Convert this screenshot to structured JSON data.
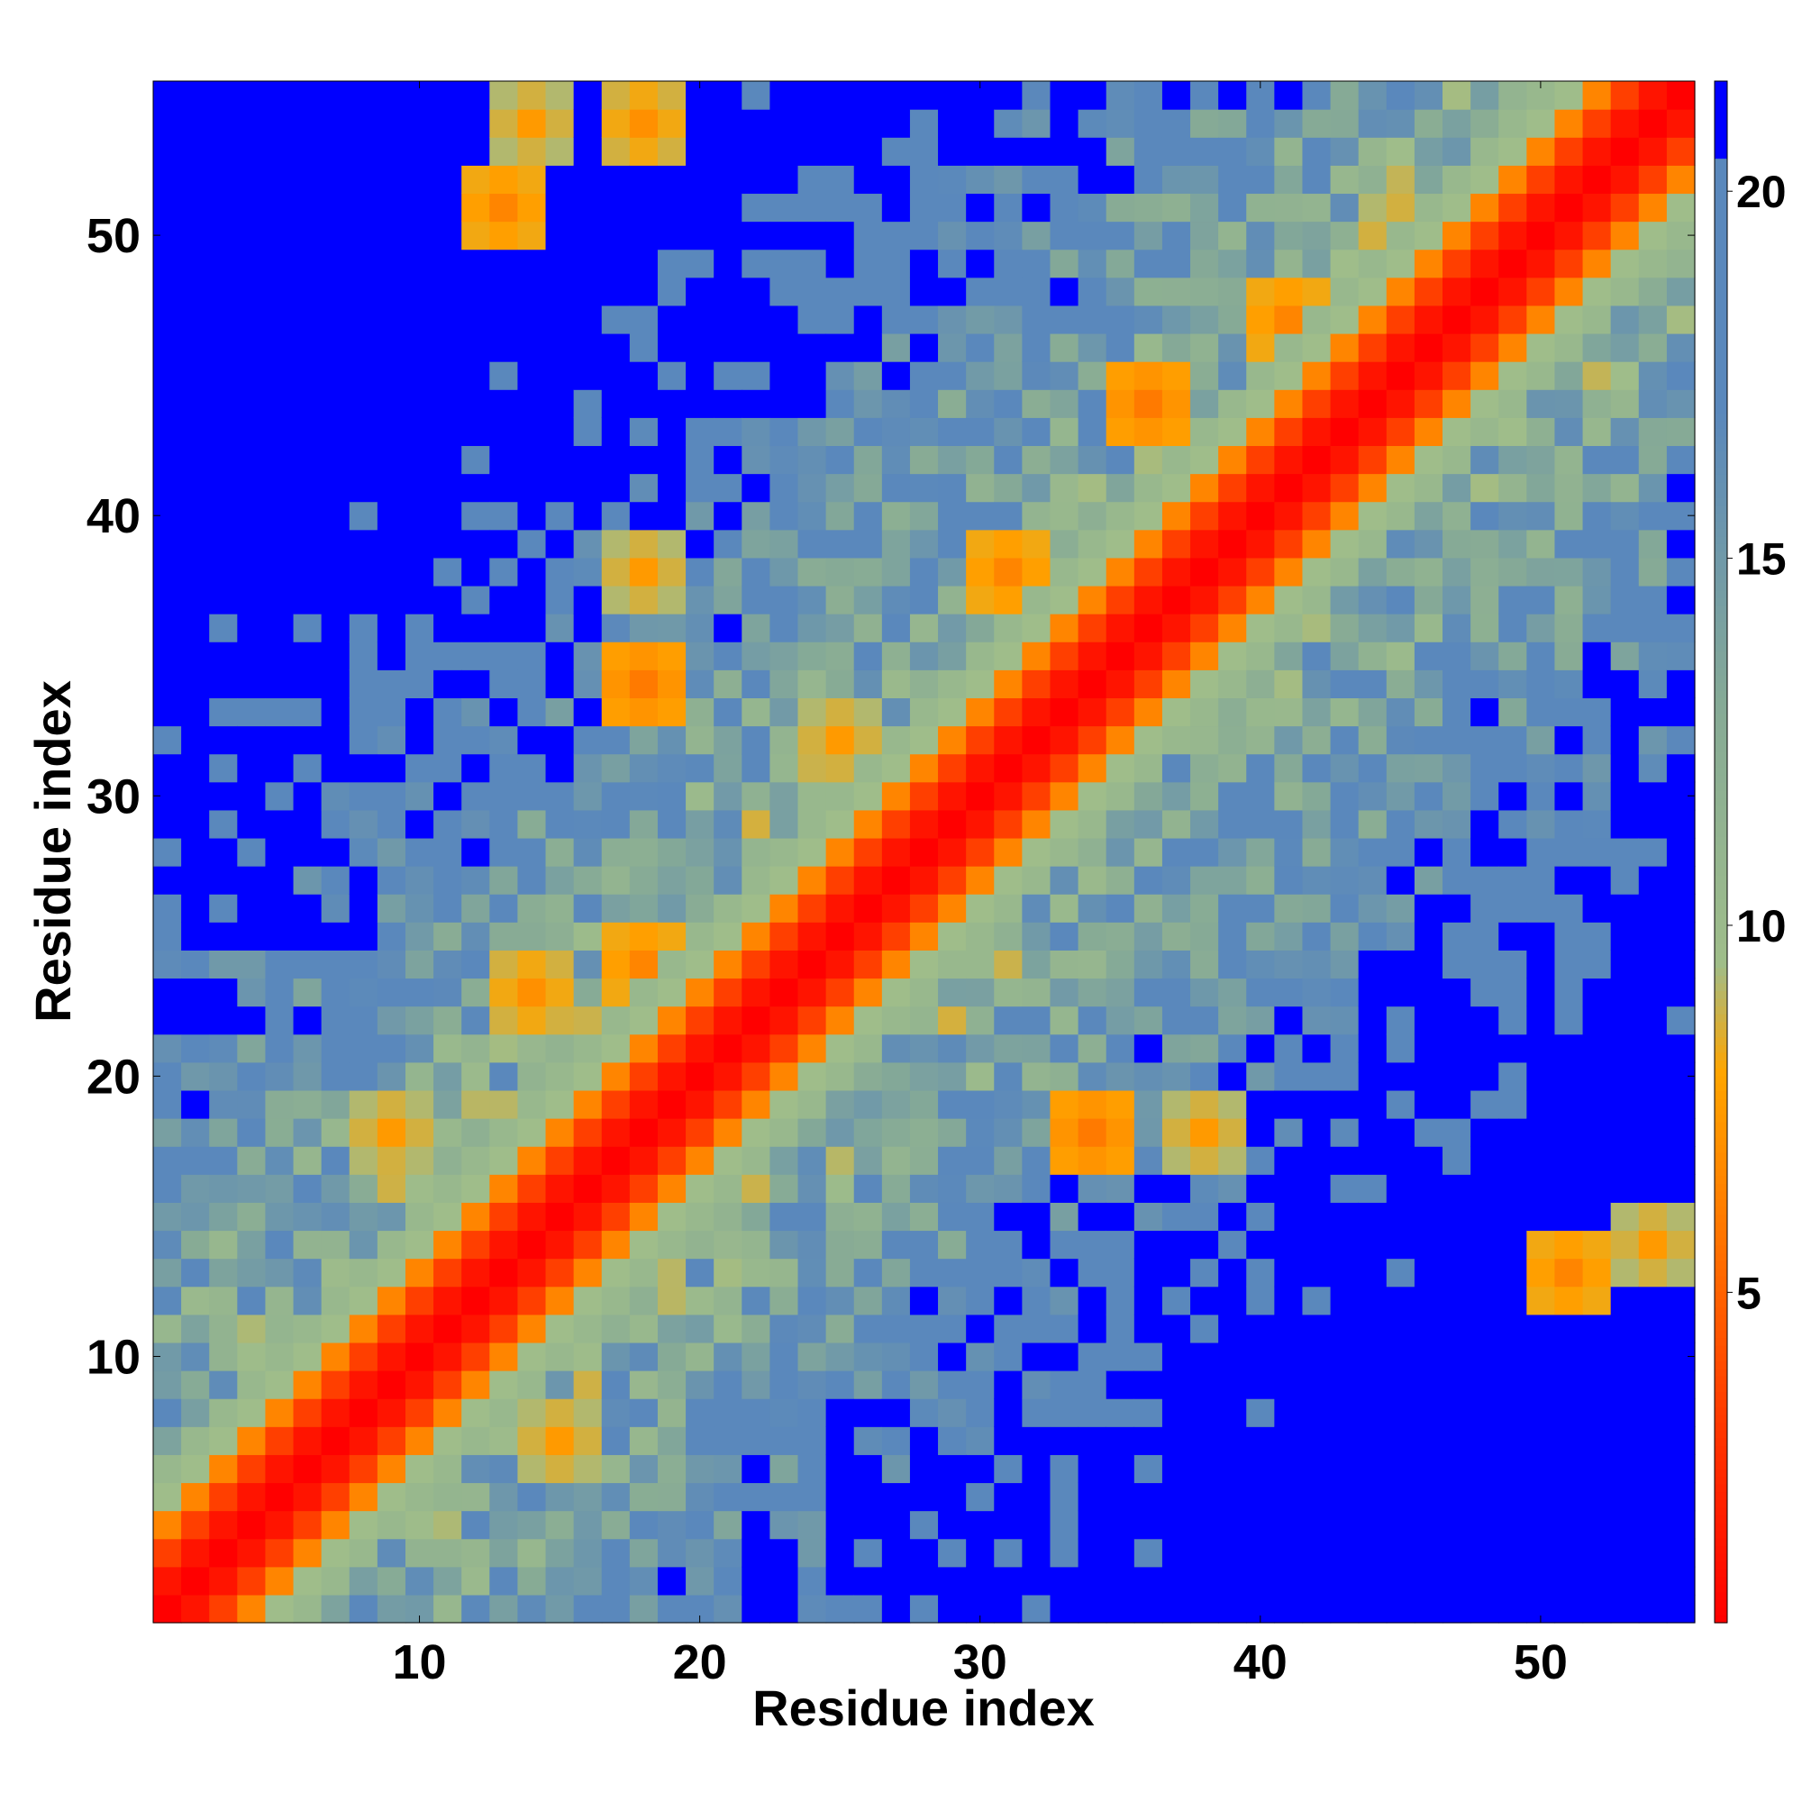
{
  "chart_data": {
    "type": "heatmap",
    "title": "",
    "xlabel": "Residue index",
    "ylabel": "Residue index",
    "n_residues": 55,
    "xlim": [
      0.5,
      55.5
    ],
    "ylim": [
      0.5,
      55.5
    ],
    "x_ticks": [
      10,
      20,
      30,
      40,
      50
    ],
    "y_ticks": [
      10,
      20,
      30,
      40,
      50
    ],
    "colorbar": {
      "ticks": [
        5,
        10,
        15,
        20
      ],
      "range": [
        0.5,
        21.5
      ],
      "saturation_color": "#0000ff",
      "stops": [
        {
          "v": 0.5,
          "color": "#ff0000"
        },
        {
          "v": 3.0,
          "color": "#ff3300"
        },
        {
          "v": 6.0,
          "color": "#ff7a00"
        },
        {
          "v": 8.0,
          "color": "#ffa500"
        },
        {
          "v": 9.5,
          "color": "#9fbd8a"
        },
        {
          "v": 13.0,
          "color": "#86aa96"
        },
        {
          "v": 17.0,
          "color": "#5a88bc"
        },
        {
          "v": 20.5,
          "color": "#5a88bc"
        },
        {
          "v": 20.51,
          "color": "#0000ff"
        },
        {
          "v": 21.5,
          "color": "#0000ff"
        }
      ]
    },
    "value_note": "Pairwise residue distance; cells >= 20.5 shown saturated blue",
    "structure": {
      "diagonal_band": [
        {
          "sep": 0,
          "value": 0
        },
        {
          "sep": 1,
          "value": 1.5
        },
        {
          "sep": 2,
          "value": 3.5
        },
        {
          "sep": 3,
          "value": 6.5
        },
        {
          "sep": 4,
          "value": 9.5
        },
        {
          "sep": 5,
          "value": 10.5
        }
      ],
      "contact_patches": [
        {
          "i": 9,
          "j": 18,
          "value": 7.5
        },
        {
          "i": 14,
          "j": 23,
          "value": 7.0
        },
        {
          "i": 18,
          "j": 24,
          "value": 6.5
        },
        {
          "i": 25,
          "j": 32,
          "value": 7.5
        },
        {
          "i": 31,
          "j": 38,
          "value": 6.5
        },
        {
          "i": 36,
          "j": 44,
          "value": 6.0
        },
        {
          "i": 41,
          "j": 47,
          "value": 6.5
        },
        {
          "i": 45,
          "j": 50,
          "value": 7.5
        },
        {
          "i": 14,
          "j": 54,
          "value": 7.5
        },
        {
          "i": 18,
          "j": 34,
          "value": 6.0
        },
        {
          "i": 18,
          "j": 38,
          "value": 7.5
        },
        {
          "i": 18,
          "j": 54,
          "value": 7.0
        },
        {
          "i": 13,
          "j": 51,
          "value": 6.5
        },
        {
          "i": 15,
          "j": 7,
          "value": 7.5
        },
        {
          "i": 34,
          "j": 18,
          "value": 6.0
        },
        {
          "i": 38,
          "j": 18,
          "value": 7.5
        },
        {
          "i": 54,
          "j": 14,
          "value": 7.5
        },
        {
          "i": 51,
          "j": 13,
          "value": 6.5
        }
      ]
    }
  }
}
